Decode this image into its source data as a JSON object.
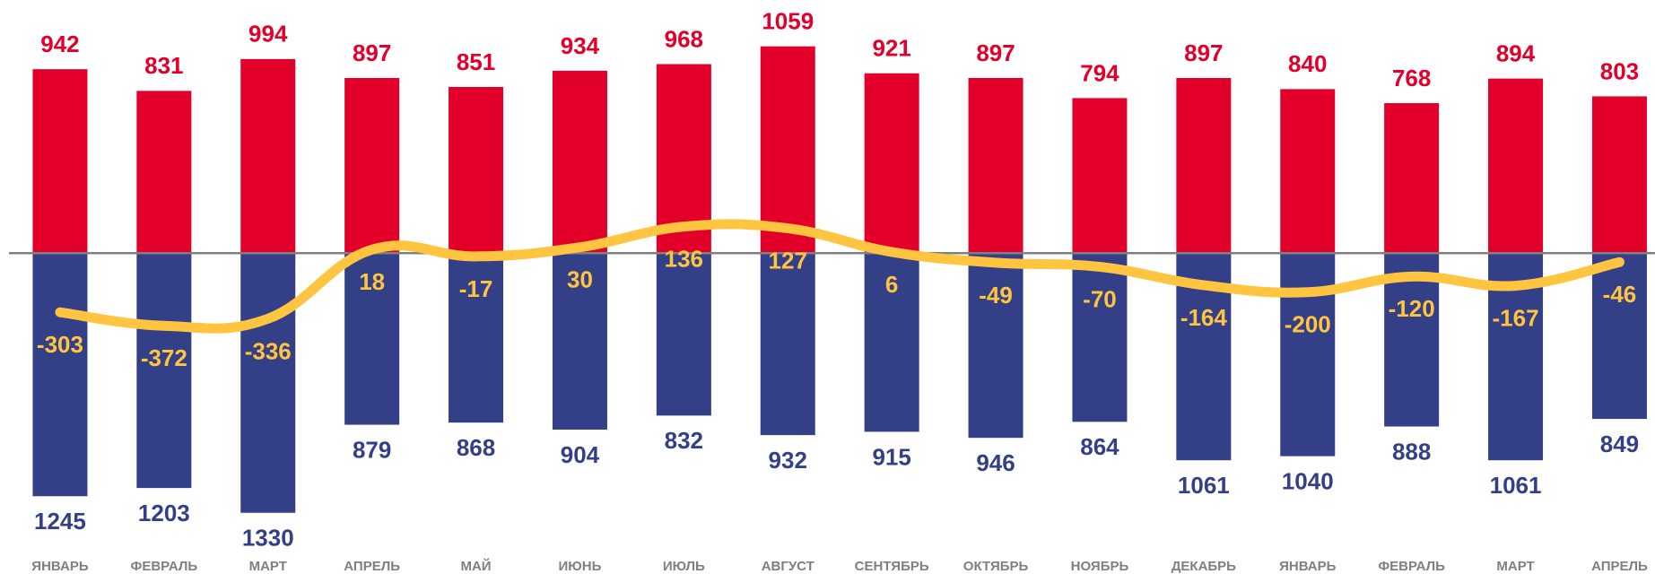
{
  "chart_data": {
    "type": "bar",
    "categories": [
      "ЯНВАРЬ",
      "ФЕВРАЛЬ",
      "МАРТ",
      "АПРЕЛЬ",
      "МАЙ",
      "ИЮНЬ",
      "ИЮЛЬ",
      "АВГУСТ",
      "СЕНТЯБРЬ",
      "ОКТЯБРЬ",
      "НОЯБРЬ",
      "ДЕКАБРЬ",
      "ЯНВАРЬ",
      "ФЕВРАЛЬ",
      "МАРТ",
      "АПРЕЛЬ"
    ],
    "series": [
      {
        "type": "bar",
        "color": "#e2002b",
        "values": [
          942,
          831,
          994,
          897,
          851,
          934,
          968,
          1059,
          921,
          897,
          794,
          897,
          840,
          768,
          894,
          803
        ]
      },
      {
        "type": "bar",
        "color": "#333f86",
        "values": [
          -1245,
          -1203,
          -1330,
          -879,
          -868,
          -904,
          -832,
          -932,
          -915,
          -946,
          -864,
          -1061,
          -1040,
          -888,
          -1061,
          -849
        ],
        "value_labels": [
          "1245",
          "1203",
          "1330",
          "879",
          "868",
          "904",
          "832",
          "932",
          "915",
          "946",
          "864",
          "1061",
          "1040",
          "888",
          "1061",
          "849"
        ]
      },
      {
        "type": "line",
        "color": "#ffc440",
        "values": [
          -303,
          -372,
          -336,
          18,
          -17,
          30,
          136,
          127,
          6,
          -49,
          -70,
          -164,
          -200,
          -120,
          -167,
          -46
        ]
      }
    ],
    "ylim": [
      -1400,
      1200
    ]
  }
}
